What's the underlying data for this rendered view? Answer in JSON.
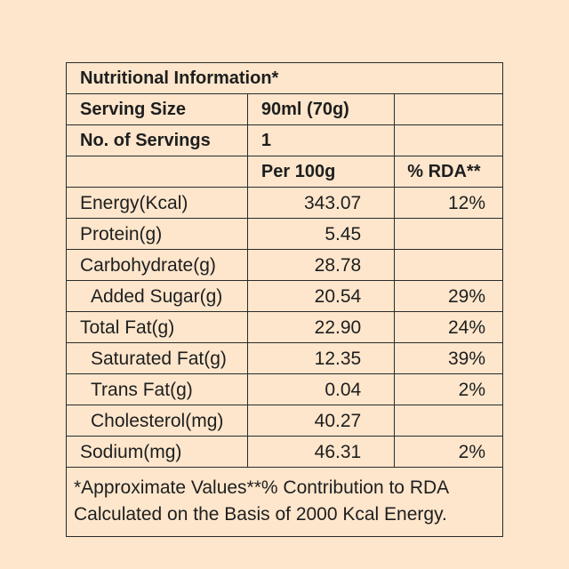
{
  "title": "Nutritional Information*",
  "serving_size": {
    "label": "Serving Size",
    "value": "90ml (70g)"
  },
  "servings": {
    "label": "No. of Servings",
    "value": "1"
  },
  "columns": {
    "per": "Per 100g",
    "rda": "% RDA**"
  },
  "rows": [
    {
      "name": "Energy(Kcal)",
      "per": "343.07",
      "rda": "12%"
    },
    {
      "name": "Protein(g)",
      "per": "5.45",
      "rda": ""
    },
    {
      "name": "Carbohydrate(g)",
      "per": "28.78",
      "rda": ""
    },
    {
      "name": "Added Sugar(g)",
      "per": "20.54",
      "rda": "29%"
    },
    {
      "name": "Total Fat(g)",
      "per": "22.90",
      "rda": "24%"
    },
    {
      "name": "Saturated Fat(g)",
      "per": "12.35",
      "rda": "39%"
    },
    {
      "name": "Trans Fat(g)",
      "per": "0.04",
      "rda": "2%"
    },
    {
      "name": "Cholesterol(mg)",
      "per": "40.27",
      "rda": ""
    },
    {
      "name": "Sodium(mg)",
      "per": "46.31",
      "rda": "2%"
    }
  ],
  "footnote": {
    "line1": "*Approximate Values**% Contribution to RDA",
    "line2": "Calculated on the Basis of 2000 Kcal Energy."
  }
}
